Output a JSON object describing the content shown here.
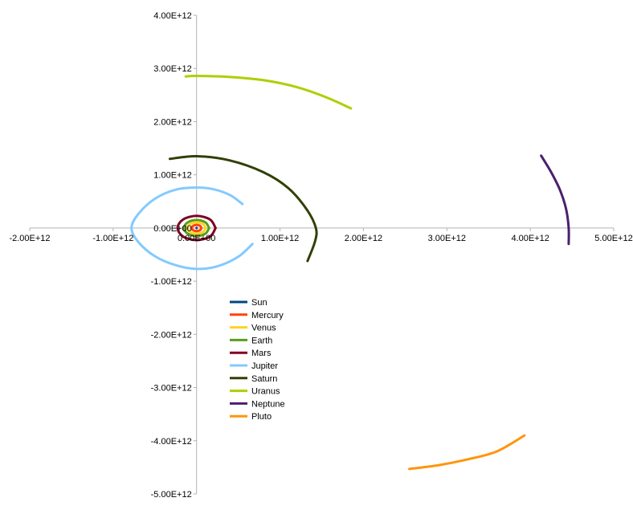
{
  "chart_data": {
    "type": "scatter",
    "title": "",
    "xlabel": "",
    "ylabel": "",
    "xlim": [
      -2000000000000.0,
      5000000000000.0
    ],
    "ylim": [
      -5000000000000.0,
      4000000000000.0
    ],
    "grid": false,
    "legend_position": "center-left",
    "x_ticks": [
      -2000000000000.0,
      -1000000000000.0,
      0,
      1000000000000.0,
      2000000000000.0,
      3000000000000.0,
      4000000000000.0,
      5000000000000.0
    ],
    "x_tick_labels": [
      "-2.00E+12",
      "-1.00E+12",
      "0.00E+00",
      "1.00E+12",
      "2.00E+12",
      "3.00E+12",
      "4.00E+12",
      "5.00E+12"
    ],
    "y_ticks": [
      4000000000000.0,
      3000000000000.0,
      2000000000000.0,
      1000000000000.0,
      0,
      -1000000000000.0,
      -2000000000000.0,
      -3000000000000.0,
      -4000000000000.0,
      -5000000000000.0
    ],
    "y_tick_labels": [
      "4.00E+12",
      "3.00E+12",
      "2.00E+12",
      "1.00E+12",
      "0.00E+00",
      "-1.00E+12",
      "-2.00E+12",
      "-3.00E+12",
      "-4.00E+12",
      "-5.00E+12"
    ],
    "series": [
      {
        "name": "Sun",
        "color": "#004586",
        "points": [
          [
            0,
            0
          ],
          [
            1000000000.0,
            0
          ]
        ]
      },
      {
        "name": "Mercury",
        "color": "#ff420e",
        "points": [
          [
            58000000000.0,
            0
          ],
          [
            41000000000.0,
            41000000000.0
          ],
          [
            0,
            58000000000.0
          ],
          [
            -41000000000.0,
            41000000000.0
          ],
          [
            -58000000000.0,
            0
          ],
          [
            -41000000000.0,
            -41000000000.0
          ],
          [
            0,
            -58000000000.0
          ],
          [
            41000000000.0,
            -41000000000.0
          ],
          [
            58000000000.0,
            0
          ]
        ]
      },
      {
        "name": "Venus",
        "color": "#ffd320",
        "points": [
          [
            108000000000.0,
            0
          ],
          [
            76000000000.0,
            76000000000.0
          ],
          [
            0,
            108000000000.0
          ],
          [
            -76000000000.0,
            76000000000.0
          ],
          [
            -108000000000.0,
            0
          ],
          [
            -76000000000.0,
            -76000000000.0
          ],
          [
            0,
            -108000000000.0
          ],
          [
            76000000000.0,
            -76000000000.0
          ],
          [
            108000000000.0,
            0
          ]
        ]
      },
      {
        "name": "Earth",
        "color": "#579d1c",
        "points": [
          [
            150000000000.0,
            0
          ],
          [
            106000000000.0,
            106000000000.0
          ],
          [
            0,
            150000000000.0
          ],
          [
            -106000000000.0,
            106000000000.0
          ],
          [
            -150000000000.0,
            0
          ],
          [
            -106000000000.0,
            -106000000000.0
          ],
          [
            0,
            -150000000000.0
          ],
          [
            106000000000.0,
            -106000000000.0
          ],
          [
            150000000000.0,
            0
          ]
        ]
      },
      {
        "name": "Mars",
        "color": "#7e0021",
        "points": [
          [
            228000000000.0,
            0
          ],
          [
            161000000000.0,
            161000000000.0
          ],
          [
            0,
            228000000000.0
          ],
          [
            -161000000000.0,
            161000000000.0
          ],
          [
            -228000000000.0,
            0
          ],
          [
            -161000000000.0,
            -161000000000.0
          ],
          [
            0,
            -228000000000.0
          ],
          [
            161000000000.0,
            -161000000000.0
          ],
          [
            228000000000.0,
            0
          ]
        ]
      },
      {
        "name": "Jupiter",
        "color": "#83caff",
        "points": [
          [
            550000000000.0,
            450000000000.0
          ],
          [
            400000000000.0,
            620000000000.0
          ],
          [
            200000000000.0,
            730000000000.0
          ],
          [
            0,
            760000000000.0
          ],
          [
            -250000000000.0,
            720000000000.0
          ],
          [
            -500000000000.0,
            550000000000.0
          ],
          [
            -700000000000.0,
            260000000000.0
          ],
          [
            -780000000000.0,
            0
          ],
          [
            -700000000000.0,
            -260000000000.0
          ],
          [
            -500000000000.0,
            -530000000000.0
          ],
          [
            -250000000000.0,
            -700000000000.0
          ],
          [
            0,
            -770000000000.0
          ],
          [
            250000000000.0,
            -720000000000.0
          ],
          [
            500000000000.0,
            -540000000000.0
          ],
          [
            670000000000.0,
            -300000000000.0
          ]
        ]
      },
      {
        "name": "Saturn",
        "color": "#314004",
        "points": [
          [
            -320000000000.0,
            1300000000000.0
          ],
          [
            0,
            1350000000000.0
          ],
          [
            400000000000.0,
            1270000000000.0
          ],
          [
            800000000000.0,
            1050000000000.0
          ],
          [
            1100000000000.0,
            750000000000.0
          ],
          [
            1320000000000.0,
            350000000000.0
          ],
          [
            1430000000000.0,
            0
          ],
          [
            1420000000000.0,
            -250000000000.0
          ],
          [
            1330000000000.0,
            -620000000000.0
          ]
        ]
      },
      {
        "name": "Uranus",
        "color": "#aecf00",
        "points": [
          [
            -130000000000.0,
            2850000000000.0
          ],
          [
            0,
            2860000000000.0
          ],
          [
            400000000000.0,
            2840000000000.0
          ],
          [
            800000000000.0,
            2780000000000.0
          ],
          [
            1200000000000.0,
            2650000000000.0
          ],
          [
            1550000000000.0,
            2460000000000.0
          ],
          [
            1850000000000.0,
            2250000000000.0
          ]
        ]
      },
      {
        "name": "Neptune",
        "color": "#4b1f6f",
        "points": [
          [
            4130000000000.0,
            1360000000000.0
          ],
          [
            4250000000000.0,
            1050000000000.0
          ],
          [
            4360000000000.0,
            700000000000.0
          ],
          [
            4430000000000.0,
            350000000000.0
          ],
          [
            4460000000000.0,
            0
          ],
          [
            4460000000000.0,
            -300000000000.0
          ]
        ]
      },
      {
        "name": "Pluto",
        "color": "#ff950e",
        "points": [
          [
            2550000000000.0,
            -4530000000000.0
          ],
          [
            2900000000000.0,
            -4460000000000.0
          ],
          [
            3250000000000.0,
            -4350000000000.0
          ],
          [
            3600000000000.0,
            -4200000000000.0
          ],
          [
            3930000000000.0,
            -3900000000000.0
          ]
        ]
      }
    ]
  }
}
